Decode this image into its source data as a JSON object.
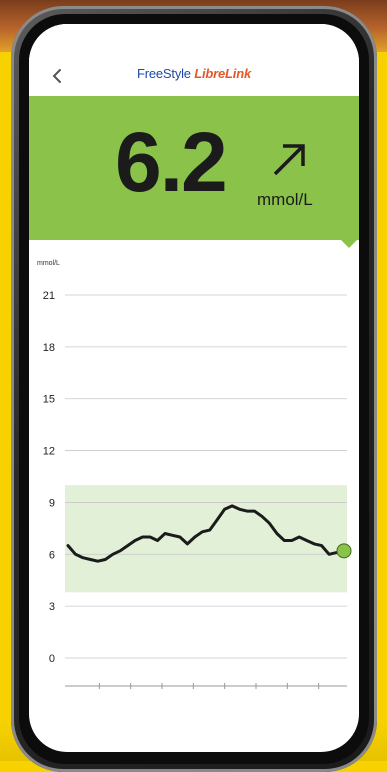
{
  "app": {
    "logo_part1": "FreeStyle",
    "logo_part2": "LibreLink"
  },
  "reading": {
    "value": "6.2",
    "unit": "mmol/L",
    "trend_icon": "arrow-up-right-icon"
  },
  "chart_data": {
    "type": "line",
    "ylabel": "mmol/L",
    "ylim": [
      0,
      21
    ],
    "yticks": [
      0,
      3,
      6,
      9,
      12,
      15,
      18,
      21
    ],
    "target_range": [
      3.8,
      10.0
    ],
    "grid": true,
    "series": [
      {
        "values": [
          6.5,
          6.0,
          5.8,
          5.7,
          5.6,
          5.7,
          6.0,
          6.2,
          6.5,
          6.8,
          7.0,
          7.0,
          6.8,
          7.2,
          7.1,
          7.0,
          6.6,
          7.0,
          7.3,
          7.4,
          8.0,
          8.6,
          8.8,
          8.6,
          8.5,
          8.5,
          8.2,
          7.8,
          7.2,
          6.8,
          6.8,
          7.0,
          6.8,
          6.6,
          6.5,
          6.0,
          6.1,
          6.2
        ]
      }
    ],
    "current_value": 6.2,
    "colors": {
      "line": "#1b1b1b",
      "range": "#e3f0d8",
      "marker": "#8bc34a"
    }
  },
  "colors": {
    "background": "#f7d200",
    "reading_band": "#8bc34a"
  }
}
